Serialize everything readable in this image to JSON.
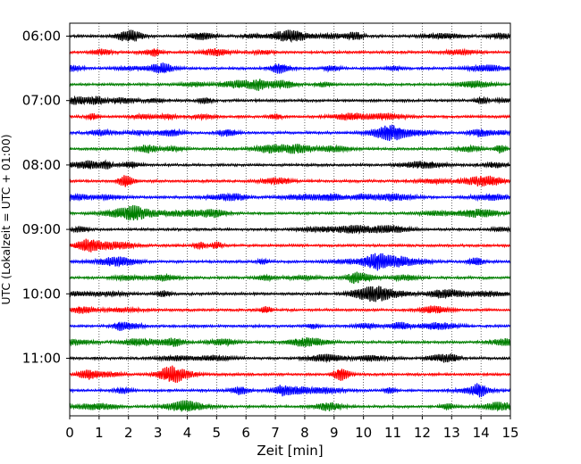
{
  "chart_data": {
    "type": "line",
    "title": "",
    "xlabel": "Zeit  [min]",
    "ylabel": "UTC (Lokalzeit = UTC + 01:00)",
    "xlim": [
      0,
      15
    ],
    "x_ticks": [
      "0",
      "1",
      "2",
      "3",
      "4",
      "5",
      "6",
      "7",
      "8",
      "9",
      "10",
      "11",
      "12",
      "13",
      "14",
      "15"
    ],
    "y_tick_labels": [
      "06:00",
      "07:00",
      "08:00",
      "09:00",
      "10:00",
      "11:00"
    ],
    "grid": "vertical dotted",
    "legend": "none",
    "trace_interval_minutes": 15,
    "trace_count": 24,
    "trace_colors": [
      "#000000",
      "#ff0000",
      "#0000ff",
      "#007f00"
    ]
  }
}
